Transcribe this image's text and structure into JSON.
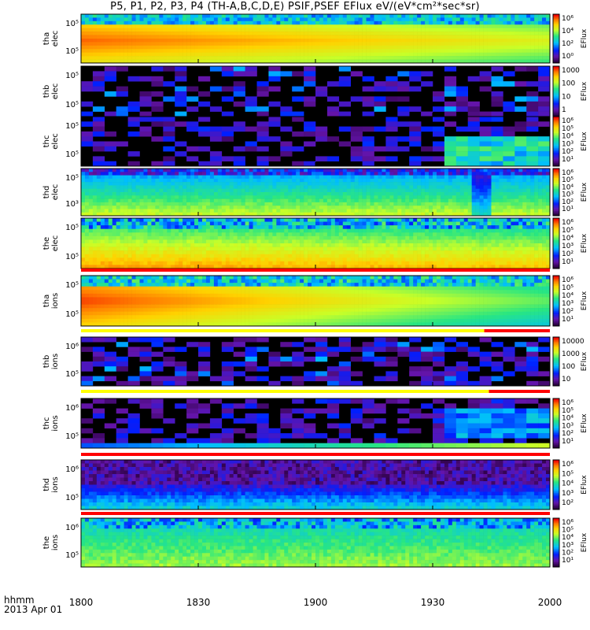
{
  "chart_data": {
    "type": "heatmap",
    "title": "P5, P1, P2, P3, P4 (TH-A,B,C,D,E) PSIF,PSEF EFlux eV/(eV*cm²*sec*sr)",
    "x_header_line1": "hhmm",
    "x_header_line2": "2013 Apr 01",
    "x_ticks": [
      "1800",
      "1830",
      "1900",
      "1930",
      "2000"
    ],
    "colorbar_label": "EFlux",
    "panels": [
      {
        "name": "tha elec",
        "ylabel": [
          "tha",
          "elec"
        ],
        "yticks": [
          "10⁵",
          "10⁵"
        ],
        "cbar_ticks": [
          "10⁶",
          "10⁴",
          "10²",
          "10⁰"
        ],
        "pattern": "hot-band",
        "flag_bar": null
      },
      {
        "name": "thb elec",
        "ylabel": [
          "thb",
          "elec"
        ],
        "yticks": [
          "10⁵",
          "10⁵"
        ],
        "cbar_ticks": [
          "1000",
          "100",
          "10",
          "1"
        ],
        "pattern": "sparse",
        "flag_bar": null
      },
      {
        "name": "thc elec",
        "ylabel": [
          "thc",
          "elec"
        ],
        "yticks": [
          "10⁵",
          "10⁵"
        ],
        "cbar_ticks": [
          "10⁶",
          "10⁵",
          "10⁴",
          "10³",
          "10²",
          "10¹"
        ],
        "pattern": "sparse-late",
        "flag_bar": null
      },
      {
        "name": "thd elec",
        "ylabel": [
          "thd",
          "elec"
        ],
        "yticks": [
          "10⁵",
          "10³"
        ],
        "cbar_ticks": [
          "10⁶",
          "10⁵",
          "10⁴",
          "10³",
          "10²",
          "10¹"
        ],
        "pattern": "band-cyan",
        "flag_bar": null
      },
      {
        "name": "the elec",
        "ylabel": [
          "the",
          "elec"
        ],
        "yticks": [
          "10⁵",
          "10⁵"
        ],
        "cbar_ticks": [
          "10⁶",
          "10⁵",
          "10⁴",
          "10³",
          "10²",
          "10¹"
        ],
        "pattern": "warm-band",
        "flag_bar": {
          "segments": [
            {
              "from": 0,
              "to": 1,
              "color": "#ff0000"
            }
          ]
        }
      },
      {
        "name": "tha ions",
        "ylabel": [
          "tha",
          "ions"
        ],
        "yticks": [
          "10⁵",
          "10⁵"
        ],
        "cbar_ticks": [
          "10⁶",
          "10⁵",
          "10⁴",
          "10³",
          "10²",
          "10¹"
        ],
        "pattern": "hot-fade",
        "flag_bar": {
          "segments": [
            {
              "from": 0,
              "to": 0.86,
              "color": "#ffff00"
            },
            {
              "from": 0.86,
              "to": 1,
              "color": "#ff0000"
            }
          ]
        }
      },
      {
        "name": "thb ions",
        "ylabel": [
          "thb",
          "ions"
        ],
        "yticks": [
          "10⁶",
          "10⁵"
        ],
        "cbar_ticks": [
          "10000",
          "1000",
          "100",
          "10"
        ],
        "pattern": "sparse",
        "flag_bar": {
          "segments": [
            {
              "from": 0,
              "to": 0.87,
              "color": "#ffff00"
            },
            {
              "from": 0.87,
              "to": 1,
              "color": "#ff0000"
            }
          ]
        }
      },
      {
        "name": "thc ions",
        "ylabel": [
          "thc",
          "ions"
        ],
        "yticks": [
          "10⁶",
          "10⁵"
        ],
        "cbar_ticks": [
          "10⁶",
          "10⁵",
          "10⁴",
          "10³",
          "10²",
          "10¹"
        ],
        "pattern": "sparse-late-ion",
        "flag_bar": {
          "segments": [
            {
              "from": 0,
              "to": 1,
              "color": "#ff0000"
            }
          ]
        }
      },
      {
        "name": "thd ions",
        "ylabel": [
          "thd",
          "ions"
        ],
        "yticks": [
          "10⁶",
          "10⁵"
        ],
        "cbar_ticks": [
          "10⁶",
          "10⁵",
          "10⁴",
          "10³",
          "10²"
        ],
        "pattern": "purple-stripes",
        "flag_bar": {
          "segments": [
            {
              "from": 0,
              "to": 1,
              "color": "#ff0000"
            }
          ]
        }
      },
      {
        "name": "the ions",
        "ylabel": [
          "the",
          "ions"
        ],
        "yticks": [
          "10⁶",
          "10⁵"
        ],
        "cbar_ticks": [
          "10⁶",
          "10⁵",
          "10⁴",
          "10³",
          "10²",
          "10¹"
        ],
        "pattern": "green-stripes",
        "flag_bar": null
      }
    ]
  }
}
